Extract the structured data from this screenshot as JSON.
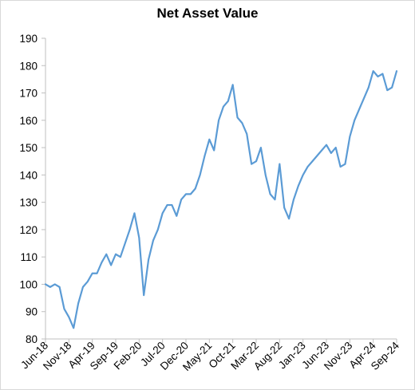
{
  "chart_data": {
    "type": "line",
    "title": "Net Asset Value",
    "xlabel": "",
    "ylabel": "",
    "x_ticks": [
      "Jun-18",
      "Nov-18",
      "Apr-19",
      "Sep-19",
      "Feb-20",
      "Jul-20",
      "Dec-20",
      "May-21",
      "Oct-21",
      "Mar-22",
      "Aug-22",
      "Jan-23",
      "Jun-23",
      "Nov-23",
      "Apr-24",
      "Sep-24"
    ],
    "ylim": [
      80,
      190
    ],
    "y_ticks": [
      80,
      90,
      100,
      110,
      120,
      130,
      140,
      150,
      160,
      170,
      180,
      190
    ],
    "grid": false,
    "legend": "none",
    "line_color": "#5b9bd5",
    "series": [
      {
        "x": [
          "2018-06",
          "2018-07",
          "2018-08",
          "2018-09",
          "2018-10",
          "2018-11",
          "2018-12",
          "2019-01",
          "2019-02",
          "2019-03",
          "2019-04",
          "2019-05",
          "2019-06",
          "2019-07",
          "2019-08",
          "2019-09",
          "2019-10",
          "2019-11",
          "2019-12",
          "2020-01",
          "2020-02",
          "2020-03",
          "2020-04",
          "2020-05",
          "2020-06",
          "2020-07",
          "2020-08",
          "2020-09",
          "2020-10",
          "2020-11",
          "2020-12",
          "2021-01",
          "2021-02",
          "2021-03",
          "2021-04",
          "2021-05",
          "2021-06",
          "2021-07",
          "2021-08",
          "2021-09",
          "2021-10",
          "2021-11",
          "2021-12",
          "2022-01",
          "2022-02",
          "2022-03",
          "2022-04",
          "2022-05",
          "2022-06",
          "2022-07",
          "2022-08",
          "2022-09",
          "2022-10",
          "2022-11",
          "2022-12",
          "2023-01",
          "2023-02",
          "2023-03",
          "2023-04",
          "2023-05",
          "2023-06",
          "2023-07",
          "2023-08",
          "2023-09",
          "2023-10",
          "2023-11",
          "2023-12",
          "2024-01",
          "2024-02",
          "2024-03",
          "2024-04",
          "2024-05",
          "2024-06",
          "2024-07",
          "2024-08",
          "2024-09"
        ],
        "values": [
          100,
          99,
          100,
          99,
          91,
          88,
          84,
          93,
          99,
          101,
          104,
          104,
          108,
          111,
          107,
          111,
          110,
          115,
          120,
          126,
          117,
          96,
          109,
          116,
          120,
          126,
          129,
          129,
          125,
          131,
          133,
          133,
          135,
          140,
          147,
          153,
          149,
          160,
          165,
          167,
          173,
          161,
          159,
          155,
          144,
          145,
          150,
          140,
          133,
          131,
          144,
          128,
          124,
          131,
          136,
          140,
          143,
          145,
          147,
          149,
          151,
          148,
          150,
          143,
          144,
          154,
          160,
          164,
          168,
          172,
          178,
          176,
          177,
          171,
          172,
          178
        ]
      }
    ]
  }
}
